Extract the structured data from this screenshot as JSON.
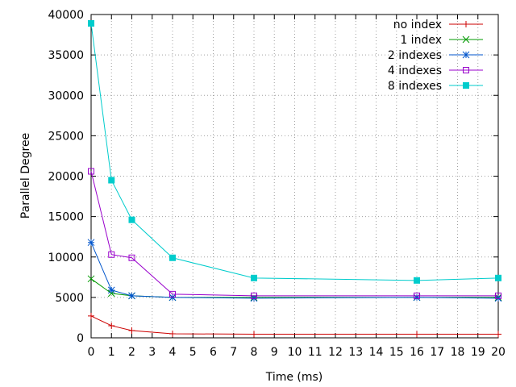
{
  "chart_data": {
    "type": "line",
    "title": "",
    "xlabel": "Time (ms)",
    "ylabel": "Parallel Degree",
    "xlim": [
      0,
      20
    ],
    "ylim": [
      0,
      40000
    ],
    "xticks": [
      0,
      1,
      2,
      3,
      4,
      5,
      6,
      7,
      8,
      9,
      10,
      11,
      12,
      13,
      14,
      15,
      16,
      17,
      18,
      19,
      20
    ],
    "yticks": [
      0,
      5000,
      10000,
      15000,
      20000,
      25000,
      30000,
      35000,
      40000
    ],
    "grid": true,
    "legend_position": "top-right",
    "x": [
      0,
      1,
      2,
      4,
      8,
      16,
      20
    ],
    "series": [
      {
        "name": "no index",
        "color": "#cc0000",
        "marker": "plus",
        "values": [
          2700,
          1500,
          900,
          500,
          450,
          450,
          450
        ]
      },
      {
        "name": "1 index",
        "color": "#009900",
        "marker": "cross",
        "values": [
          7300,
          5500,
          5200,
          5000,
          5000,
          5000,
          5000
        ]
      },
      {
        "name": "2 indexes",
        "color": "#0055cc",
        "marker": "star",
        "values": [
          11800,
          5900,
          5200,
          5000,
          4900,
          5000,
          4900
        ]
      },
      {
        "name": "4 indexes",
        "color": "#9900cc",
        "marker": "open-square",
        "values": [
          20600,
          10300,
          9900,
          5400,
          5200,
          5200,
          5200
        ]
      },
      {
        "name": "8 indexes",
        "color": "#00cccc",
        "marker": "filled-square",
        "values": [
          38900,
          19500,
          14600,
          9900,
          7400,
          7100,
          7400
        ]
      }
    ]
  }
}
